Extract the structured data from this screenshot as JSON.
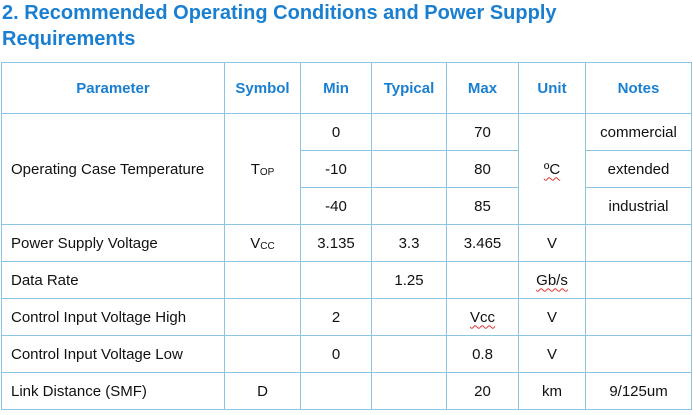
{
  "header": {
    "title": "2. Recommended Operating Conditions and Power Supply Requirements"
  },
  "table": {
    "columns": [
      "Parameter",
      "Symbol",
      "Min",
      "Typical",
      "Max",
      "Unit",
      "Notes"
    ],
    "rows": [
      {
        "parameter": "Operating Case Temperature",
        "symbol": {
          "main": "T",
          "sub": "OP"
        },
        "unit": "ºC",
        "conditions": [
          {
            "min": "0",
            "max": "70",
            "notes": "commercial"
          },
          {
            "min": "-10",
            "max": "80",
            "notes": "extended"
          },
          {
            "min": "-40",
            "max": "85",
            "notes": "industrial"
          }
        ]
      },
      {
        "parameter": "Power Supply Voltage",
        "symbol": {
          "main": "V",
          "sub": "CC"
        },
        "min": "3.135",
        "typical": "3.3",
        "max": "3.465",
        "unit": "V"
      },
      {
        "parameter": "Data Rate",
        "typical": "1.25",
        "unit": "Gb/s"
      },
      {
        "parameter": "Control Input Voltage High",
        "min": "2",
        "max": "Vcc",
        "unit": "V"
      },
      {
        "parameter": "Control Input Voltage Low",
        "min": "0",
        "max": "0.8",
        "unit": "V"
      },
      {
        "parameter": "Link Distance (SMF)",
        "symbol": {
          "main": "D"
        },
        "max": "20",
        "unit": "km",
        "notes": "9/125um"
      }
    ]
  }
}
